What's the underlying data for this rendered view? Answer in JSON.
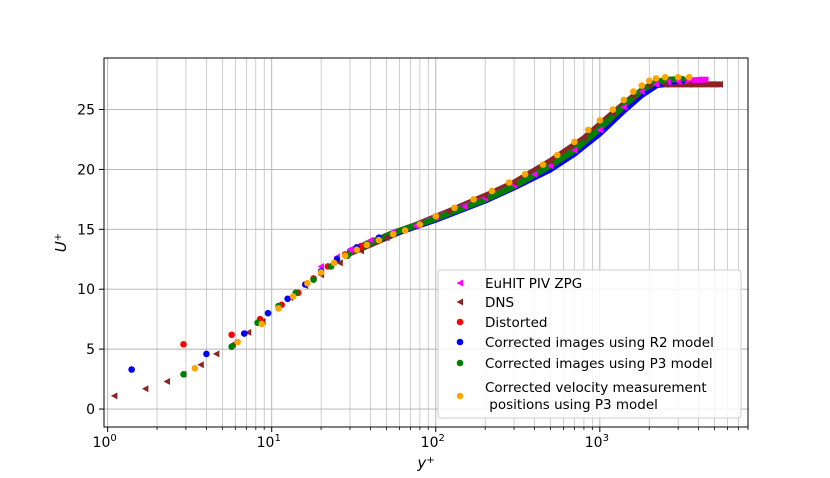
{
  "chart_data": {
    "type": "scatter",
    "title": "",
    "xlabel": "y",
    "xlabel_sup": "+",
    "ylabel": "U",
    "ylabel_sup": "+",
    "xscale": "log",
    "xlim": [
      0.95,
      8000
    ],
    "ylim": [
      -1.5,
      29.3
    ],
    "grid": true,
    "x_ticks": [
      {
        "value": 1,
        "base": "10",
        "exp": "0"
      },
      {
        "value": 10,
        "base": "10",
        "exp": "1"
      },
      {
        "value": 100,
        "base": "10",
        "exp": "2"
      },
      {
        "value": 1000,
        "base": "10",
        "exp": "3"
      }
    ],
    "y_ticks": [
      0,
      5,
      10,
      15,
      20,
      25
    ],
    "legend_position": "bottom-right",
    "series": [
      {
        "name": "EuHIT PIV ZPG",
        "marker": "triangle-left",
        "color": "#ff00ff",
        "points": [
          [
            20,
            11.9
          ],
          [
            25,
            12.7
          ],
          [
            30,
            13.3
          ],
          [
            40,
            14.1
          ],
          [
            55,
            14.8
          ],
          [
            75,
            15.3
          ],
          [
            100,
            16.0
          ],
          [
            150,
            16.9
          ],
          [
            200,
            17.6
          ],
          [
            300,
            18.7
          ],
          [
            400,
            19.6
          ],
          [
            500,
            20.3
          ],
          [
            700,
            21.6
          ],
          [
            1000,
            23.3
          ],
          [
            1400,
            25.2
          ],
          [
            1800,
            26.5
          ],
          [
            2200,
            27.1
          ],
          [
            2600,
            27.3
          ],
          [
            3000,
            27.35
          ],
          [
            3500,
            27.4
          ],
          [
            4000,
            27.5
          ],
          [
            4400,
            27.5
          ]
        ]
      },
      {
        "name": "DNS",
        "marker": "triangle-left",
        "color": "#8b2525",
        "points": [
          [
            1.1,
            1.1
          ],
          [
            1.7,
            1.7
          ],
          [
            2.3,
            2.3
          ],
          [
            2.9,
            2.9
          ],
          [
            3.7,
            3.7
          ],
          [
            4.6,
            4.6
          ],
          [
            5.8,
            5.4
          ],
          [
            7.2,
            6.4
          ],
          [
            8.8,
            7.3
          ],
          [
            11,
            8.5
          ],
          [
            13,
            9.3
          ],
          [
            16,
            10.3
          ],
          [
            20,
            11.2
          ],
          [
            26,
            12.2
          ],
          [
            35,
            13.2
          ],
          [
            50,
            14.3
          ],
          [
            80,
            15.5
          ],
          [
            120,
            16.5
          ],
          [
            200,
            17.8
          ],
          [
            300,
            18.9
          ],
          [
            500,
            20.7
          ],
          [
            800,
            22.6
          ],
          [
            1200,
            24.7
          ],
          [
            1600,
            26.1
          ],
          [
            2000,
            27.0
          ],
          [
            2500,
            27.1
          ],
          [
            3500,
            27.1
          ],
          [
            5400,
            27.1
          ]
        ]
      },
      {
        "name": "Distorted",
        "marker": "circle",
        "color": "#ff0000",
        "points": [
          [
            2.9,
            5.4
          ],
          [
            5.7,
            6.2
          ],
          [
            8.5,
            7.5
          ],
          [
            11.5,
            8.7
          ],
          [
            14.5,
            9.7
          ],
          [
            18,
            10.9
          ],
          [
            22,
            11.9
          ],
          [
            28,
            12.9
          ],
          [
            35,
            13.6
          ]
        ]
      },
      {
        "name": "Corrected images using R2 model",
        "marker": "circle",
        "color": "#0000ff",
        "points": [
          [
            1.4,
            3.3
          ],
          [
            4.0,
            4.6
          ],
          [
            6.8,
            6.3
          ],
          [
            9.5,
            8.0
          ],
          [
            12.5,
            9.2
          ],
          [
            16,
            10.4
          ],
          [
            20,
            11.5
          ],
          [
            25,
            12.5
          ],
          [
            33,
            13.5
          ],
          [
            45,
            14.3
          ]
        ]
      },
      {
        "name": "Corrected images using P3 model",
        "marker": "circle",
        "color": "#008000",
        "points": [
          [
            2.9,
            2.9
          ],
          [
            5.7,
            5.2
          ],
          [
            8.2,
            7.2
          ],
          [
            11,
            8.6
          ],
          [
            14,
            9.7
          ],
          [
            18,
            10.8
          ],
          [
            23,
            11.9
          ],
          [
            29,
            12.8
          ],
          [
            38,
            13.8
          ]
        ]
      },
      {
        "name": "Corrected velocity measurement\n positions using P3 model",
        "marker": "circle",
        "color": "#ffa500",
        "points": [
          [
            3.4,
            3.4
          ],
          [
            6.2,
            5.6
          ],
          [
            8.7,
            7.1
          ],
          [
            11,
            8.4
          ],
          [
            13.5,
            9.4
          ],
          [
            16.5,
            10.5
          ],
          [
            20,
            11.4
          ],
          [
            24,
            12.2
          ],
          [
            28,
            12.8
          ],
          [
            33,
            13.3
          ],
          [
            38,
            13.7
          ],
          [
            45,
            14.1
          ],
          [
            55,
            14.6
          ],
          [
            65,
            14.9
          ],
          [
            80,
            15.4
          ],
          [
            100,
            16.1
          ],
          [
            130,
            16.8
          ],
          [
            170,
            17.5
          ],
          [
            220,
            18.2
          ],
          [
            280,
            18.9
          ],
          [
            350,
            19.6
          ],
          [
            450,
            20.4
          ],
          [
            550,
            21.2
          ],
          [
            700,
            22.3
          ],
          [
            850,
            23.3
          ],
          [
            1000,
            24.1
          ],
          [
            1200,
            25.0
          ],
          [
            1400,
            25.8
          ],
          [
            1600,
            26.5
          ],
          [
            1800,
            27.0
          ],
          [
            2000,
            27.4
          ],
          [
            2200,
            27.6
          ],
          [
            2500,
            27.7
          ],
          [
            3000,
            27.7
          ],
          [
            3500,
            27.7
          ]
        ]
      }
    ],
    "legend": [
      {
        "label": "EuHIT PIV ZPG",
        "marker": "triangle-left",
        "color": "#ff00ff"
      },
      {
        "label": "DNS",
        "marker": "triangle-left",
        "color": "#8b2525"
      },
      {
        "label": "Distorted",
        "marker": "circle",
        "color": "#ff0000"
      },
      {
        "label": "Corrected images using R2 model",
        "marker": "circle",
        "color": "#0000ff"
      },
      {
        "label": "Corrected images using P3 model",
        "marker": "circle",
        "color": "#008000"
      },
      {
        "label_lines": [
          "Corrected velocity measurement",
          " positions using P3 model"
        ],
        "marker": "circle",
        "color": "#ffa500"
      }
    ],
    "curves": [
      {
        "name": "DNS profile",
        "color": "#8b2525",
        "points": [
          [
            30,
            13.0
          ],
          [
            50,
            14.3
          ],
          [
            80,
            15.5
          ],
          [
            120,
            16.5
          ],
          [
            200,
            17.8
          ],
          [
            300,
            18.9
          ],
          [
            500,
            20.7
          ],
          [
            800,
            22.6
          ],
          [
            1200,
            24.7
          ],
          [
            1600,
            26.1
          ],
          [
            2000,
            27.0
          ],
          [
            2500,
            27.1
          ],
          [
            5400,
            27.1
          ]
        ]
      },
      {
        "name": "EuHIT profile",
        "color": "#ff00ff",
        "points": [
          [
            30,
            13.2
          ],
          [
            55,
            14.7
          ],
          [
            100,
            15.95
          ],
          [
            200,
            17.55
          ],
          [
            300,
            18.6
          ],
          [
            500,
            20.2
          ],
          [
            700,
            21.5
          ],
          [
            1000,
            23.2
          ],
          [
            1400,
            25.1
          ],
          [
            1800,
            26.4
          ],
          [
            2200,
            27.1
          ],
          [
            2600,
            27.3
          ],
          [
            3200,
            27.4
          ],
          [
            4400,
            27.5
          ]
        ]
      },
      {
        "name": "R2 profile",
        "color": "#0000ff",
        "points": [
          [
            30,
            13.2
          ],
          [
            55,
            14.6
          ],
          [
            100,
            15.8
          ],
          [
            200,
            17.4
          ],
          [
            300,
            18.5
          ],
          [
            500,
            20.0
          ],
          [
            700,
            21.3
          ],
          [
            1000,
            23.0
          ],
          [
            1400,
            24.9
          ],
          [
            1800,
            26.2
          ],
          [
            2200,
            27.0
          ],
          [
            2600,
            27.3
          ],
          [
            3200,
            27.4
          ]
        ]
      },
      {
        "name": "P3 profile",
        "color": "#008000",
        "points": [
          [
            30,
            13.1
          ],
          [
            55,
            14.7
          ],
          [
            100,
            15.9
          ],
          [
            200,
            17.5
          ],
          [
            300,
            18.6
          ],
          [
            500,
            20.3
          ],
          [
            700,
            21.6
          ],
          [
            1000,
            23.4
          ],
          [
            1400,
            25.3
          ],
          [
            1800,
            26.6
          ],
          [
            2200,
            27.3
          ],
          [
            2600,
            27.5
          ],
          [
            3200,
            27.55
          ]
        ]
      }
    ]
  },
  "colors": {
    "axis": "#000000",
    "grid": "#b0b0b0",
    "legend_border": "#cccccc"
  }
}
